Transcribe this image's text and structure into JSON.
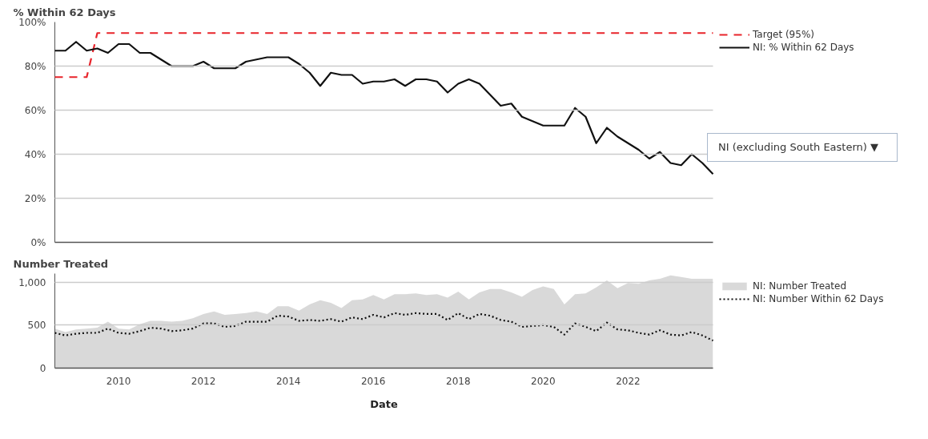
{
  "chart_data": [
    {
      "type": "line",
      "title": "% Within 62 Days",
      "x": [
        2008.5,
        2008.75,
        2009,
        2009.25,
        2009.5,
        2009.75,
        2010,
        2010.25,
        2010.5,
        2010.75,
        2011,
        2011.25,
        2011.5,
        2011.75,
        2012,
        2012.25,
        2012.5,
        2012.75,
        2013,
        2013.25,
        2013.5,
        2013.75,
        2014,
        2014.25,
        2014.5,
        2014.75,
        2015,
        2015.25,
        2015.5,
        2015.75,
        2016,
        2016.25,
        2016.5,
        2016.75,
        2017,
        2017.25,
        2017.5,
        2017.75,
        2018,
        2018.25,
        2018.5,
        2018.75,
        2019,
        2019.25,
        2019.5,
        2019.75,
        2020,
        2020.25,
        2020.5,
        2020.75,
        2021,
        2021.25,
        2021.5,
        2021.75,
        2022,
        2022.25,
        2022.5,
        2022.75,
        2023,
        2023.25,
        2023.5,
        2023.75,
        2024
      ],
      "series": [
        {
          "name": "Target (95%)",
          "color": "#e8242b",
          "line_style": "dashed",
          "x": [
            2008.5,
            2009.25,
            2009.5,
            2024
          ],
          "values": [
            75,
            75,
            95,
            95
          ]
        },
        {
          "name": "NI: % Within 62 Days",
          "color": "#111111",
          "line_style": "solid",
          "values": [
            87,
            87,
            91,
            87,
            88,
            86,
            90,
            90,
            86,
            86,
            83,
            80,
            80,
            80,
            82,
            79,
            79,
            79,
            82,
            83,
            84,
            84,
            84,
            81,
            77,
            71,
            77,
            76,
            76,
            72,
            73,
            73,
            74,
            71,
            74,
            74,
            73,
            68,
            72,
            74,
            72,
            67,
            62,
            63,
            57,
            55,
            53,
            53,
            53,
            61,
            57,
            45,
            52,
            48,
            45,
            42,
            38,
            41,
            36,
            35,
            40,
            36,
            31
          ]
        }
      ],
      "xlim": [
        2008.5,
        2024
      ],
      "xticks": [
        2010,
        2012,
        2014,
        2016,
        2018,
        2020,
        2022
      ],
      "ylim": [
        0,
        100
      ],
      "yticks": [
        {
          "value": 0,
          "label": "0%"
        },
        {
          "value": 20,
          "label": "20%"
        },
        {
          "value": 40,
          "label": "40%"
        },
        {
          "value": 60,
          "label": "60%"
        },
        {
          "value": 80,
          "label": "80%"
        },
        {
          "value": 100,
          "label": "100%"
        }
      ],
      "tick_labels": "y",
      "grid": "y",
      "legend": "right",
      "annotations": [
        "NI (excluding South Eastern) ▼"
      ]
    },
    {
      "type": "line",
      "title": "Number Treated",
      "xlabel": "Date",
      "x": [
        2008.5,
        2008.75,
        2009,
        2009.25,
        2009.5,
        2009.75,
        2010,
        2010.25,
        2010.5,
        2010.75,
        2011,
        2011.25,
        2011.5,
        2011.75,
        2012,
        2012.25,
        2012.5,
        2012.75,
        2013,
        2013.25,
        2013.5,
        2013.75,
        2014,
        2014.25,
        2014.5,
        2014.75,
        2015,
        2015.25,
        2015.5,
        2015.75,
        2016,
        2016.25,
        2016.5,
        2016.75,
        2017,
        2017.25,
        2017.5,
        2017.75,
        2018,
        2018.25,
        2018.5,
        2018.75,
        2019,
        2019.25,
        2019.5,
        2019.75,
        2020,
        2020.25,
        2020.5,
        2020.75,
        2021,
        2021.25,
        2021.5,
        2021.75,
        2022,
        2022.25,
        2022.5,
        2022.75,
        2023,
        2023.25,
        2023.5,
        2023.75,
        2024
      ],
      "series": [
        {
          "name": "NI: Number Treated",
          "type": "area",
          "color": "#d9d9d9",
          "values": [
            460,
            420,
            450,
            460,
            470,
            540,
            460,
            450,
            510,
            550,
            550,
            540,
            550,
            580,
            630,
            660,
            620,
            630,
            640,
            660,
            630,
            720,
            720,
            670,
            740,
            790,
            760,
            700,
            790,
            800,
            850,
            800,
            860,
            860,
            870,
            850,
            860,
            820,
            890,
            800,
            880,
            920,
            920,
            880,
            830,
            910,
            950,
            920,
            740,
            860,
            870,
            940,
            1020,
            930,
            990,
            980,
            1020,
            1040,
            1080,
            1060,
            1040,
            1040,
            1040
          ]
        },
        {
          "name": "NI: Number Within 62 Days",
          "type": "line",
          "color": "#111111",
          "line_style": "dotted",
          "values": [
            410,
            380,
            400,
            410,
            410,
            460,
            410,
            400,
            430,
            470,
            460,
            430,
            440,
            460,
            520,
            520,
            480,
            490,
            540,
            540,
            540,
            610,
            600,
            550,
            560,
            550,
            570,
            540,
            590,
            570,
            620,
            590,
            640,
            620,
            640,
            630,
            630,
            560,
            640,
            570,
            630,
            610,
            560,
            540,
            480,
            490,
            500,
            480,
            390,
            520,
            480,
            430,
            530,
            450,
            440,
            410,
            390,
            440,
            390,
            380,
            420,
            380,
            320
          ]
        }
      ],
      "xlim": [
        2008.5,
        2024
      ],
      "xticks": [
        2010,
        2012,
        2014,
        2016,
        2018,
        2020,
        2022
      ],
      "ylim": [
        0,
        1100
      ],
      "yticks": [
        0,
        500,
        {
          "value": 1000,
          "label": "1,000"
        }
      ],
      "grid": "y",
      "legend": "right"
    }
  ]
}
